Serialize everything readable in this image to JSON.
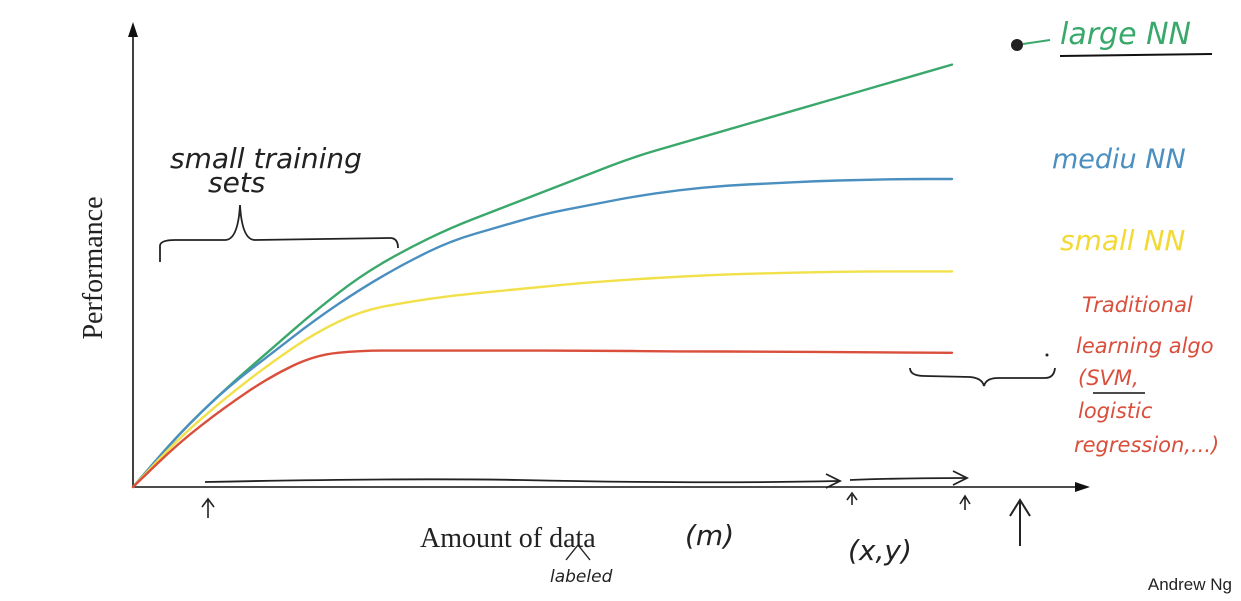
{
  "chart_data": {
    "type": "line",
    "ylabel": "Performance",
    "xlabel": "Amount of data",
    "xlabel_suffix": "(m)",
    "xlabel_note": "labeled",
    "xlim": [
      0,
      100
    ],
    "ylim": [
      0,
      100
    ],
    "grid": false,
    "legend": "right-inline",
    "series": [
      {
        "name": "large NN",
        "color": "#3aa86b",
        "points": [
          [
            0,
            0
          ],
          [
            5,
            12
          ],
          [
            10,
            22
          ],
          [
            15,
            31
          ],
          [
            20,
            40
          ],
          [
            25,
            48
          ],
          [
            30,
            54
          ],
          [
            35,
            59
          ],
          [
            40,
            63
          ],
          [
            45,
            67
          ],
          [
            50,
            71
          ],
          [
            55,
            75
          ],
          [
            60,
            78
          ],
          [
            65,
            81
          ],
          [
            70,
            84
          ],
          [
            75,
            87
          ],
          [
            80,
            90
          ],
          [
            85,
            93
          ],
          [
            90,
            96
          ]
        ]
      },
      {
        "name": "medium NN",
        "color": "#4a8fc0",
        "points": [
          [
            0,
            0
          ],
          [
            5,
            12
          ],
          [
            10,
            22
          ],
          [
            15,
            30
          ],
          [
            20,
            38
          ],
          [
            25,
            45
          ],
          [
            30,
            51
          ],
          [
            35,
            56
          ],
          [
            40,
            59
          ],
          [
            45,
            62
          ],
          [
            50,
            64
          ],
          [
            55,
            66
          ],
          [
            60,
            67.5
          ],
          [
            65,
            68.5
          ],
          [
            70,
            69
          ],
          [
            75,
            69.5
          ],
          [
            80,
            69.8
          ],
          [
            85,
            70
          ],
          [
            90,
            70
          ]
        ]
      },
      {
        "name": "small NN",
        "color": "#f2e04a",
        "points": [
          [
            0,
            0
          ],
          [
            5,
            11
          ],
          [
            10,
            20
          ],
          [
            15,
            28
          ],
          [
            20,
            35
          ],
          [
            25,
            40
          ],
          [
            30,
            42
          ],
          [
            35,
            43.5
          ],
          [
            40,
            44.5
          ],
          [
            45,
            45.5
          ],
          [
            50,
            46.5
          ],
          [
            55,
            47.2
          ],
          [
            60,
            47.8
          ],
          [
            65,
            48.3
          ],
          [
            70,
            48.6
          ],
          [
            75,
            48.8
          ],
          [
            80,
            49
          ],
          [
            85,
            49
          ],
          [
            90,
            49
          ]
        ]
      },
      {
        "name": "Traditional learning algo",
        "color": "#d94f3c",
        "points": [
          [
            0,
            0
          ],
          [
            5,
            10
          ],
          [
            10,
            18
          ],
          [
            15,
            25
          ],
          [
            20,
            30
          ],
          [
            25,
            31
          ],
          [
            30,
            31
          ],
          [
            40,
            31
          ],
          [
            50,
            31
          ],
          [
            60,
            30.8
          ],
          [
            70,
            30.8
          ],
          [
            80,
            30.6
          ],
          [
            90,
            30.5
          ]
        ]
      }
    ],
    "annotations": {
      "large_nn": "large NN",
      "medium_nn": "mediu NN",
      "small_nn": "small NN",
      "trad_line1": "Traditional",
      "trad_line2": "learning algo",
      "trad_line3": "(SVM,",
      "trad_line4": "logistic",
      "trad_line5": "regression,...)",
      "small_sets_line1": "small training",
      "small_sets_line2": "sets",
      "xy": "(x,y)"
    }
  },
  "credit": "Andrew Ng"
}
